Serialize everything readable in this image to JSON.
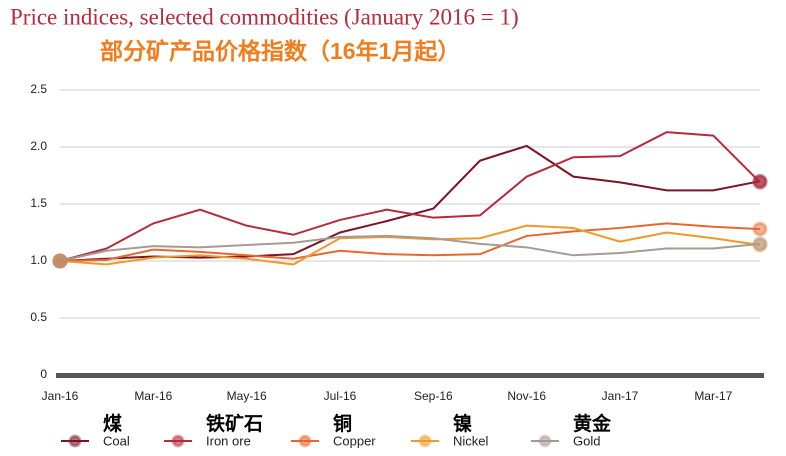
{
  "chart_data": {
    "type": "line",
    "title": "Price indices, selected commodities (January 2016 = 1)",
    "subtitle": "部分矿产品价格指数（16年1月起）",
    "categories": [
      "Jan-16",
      null,
      "Mar-16",
      null,
      "May-16",
      null,
      "Jul-16",
      null,
      "Sep-16",
      null,
      "Nov-16",
      null,
      "Jan-17",
      null,
      "Mar-17",
      null
    ],
    "ylim": [
      0,
      2.5
    ],
    "yticks": [
      0,
      0.5,
      {
        "value": 1,
        "label": "1.0"
      },
      1.5,
      {
        "value": 2,
        "label": "2.0"
      },
      2.5
    ],
    "grid": true,
    "legend_position": "bottom",
    "legend_labels_cn": [
      "煤",
      "铁矿石",
      "铜",
      "镍",
      "黄金"
    ],
    "series": [
      {
        "name": "Coal",
        "color": "#7b1526",
        "values": [
          1.0,
          1.02,
          1.04,
          1.03,
          1.04,
          1.06,
          1.25,
          1.35,
          1.46,
          1.88,
          2.01,
          1.74,
          1.69,
          1.62,
          1.62,
          1.7
        ]
      },
      {
        "name": "Iron ore",
        "color": "#b62a3c",
        "values": [
          1.0,
          1.11,
          1.33,
          1.45,
          1.31,
          1.23,
          1.36,
          1.45,
          1.38,
          1.4,
          1.74,
          1.91,
          1.92,
          2.13,
          2.1,
          1.69
        ]
      },
      {
        "name": "Copper",
        "color": "#e8672e",
        "values": [
          1.0,
          1.01,
          1.1,
          1.08,
          1.05,
          1.02,
          1.09,
          1.06,
          1.05,
          1.06,
          1.22,
          1.26,
          1.29,
          1.33,
          1.3,
          1.28
        ]
      },
      {
        "name": "Nickel",
        "color": "#f0992a",
        "values": [
          1.0,
          0.97,
          1.03,
          1.05,
          1.02,
          0.97,
          1.2,
          1.21,
          1.19,
          1.2,
          1.31,
          1.29,
          1.17,
          1.25,
          1.2,
          1.14
        ]
      },
      {
        "name": "Gold",
        "color": "#a89a93",
        "values": [
          1.0,
          1.09,
          1.13,
          1.12,
          1.14,
          1.16,
          1.21,
          1.22,
          1.2,
          1.15,
          1.12,
          1.05,
          1.07,
          1.11,
          1.11,
          1.15
        ]
      }
    ]
  }
}
